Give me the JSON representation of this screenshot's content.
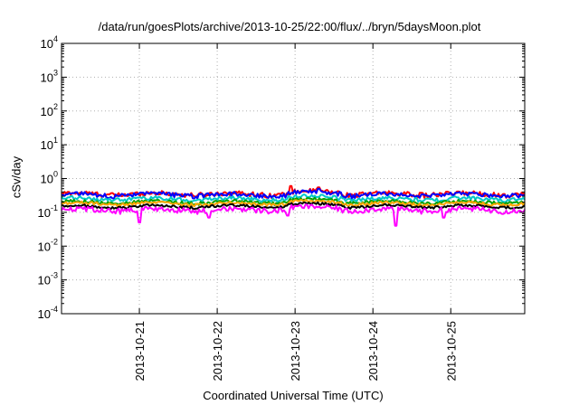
{
  "chart_data": {
    "type": "line",
    "title": "/data/run/goesPlots/archive/2013-10-25/22:00/flux/../bryn/5daysMoon.plot",
    "xlabel": "Coordinated Universal Time (UTC)",
    "ylabel": "cSv/day",
    "yscale": "log",
    "ylim_exponents": [
      -4,
      4
    ],
    "y_ticks": [
      {
        "base": "10",
        "exp": "4"
      },
      {
        "base": "10",
        "exp": "3"
      },
      {
        "base": "10",
        "exp": "2"
      },
      {
        "base": "10",
        "exp": "1"
      },
      {
        "base": "10",
        "exp": "0"
      },
      {
        "base": "10",
        "exp": "-1"
      },
      {
        "base": "10",
        "exp": "-2"
      },
      {
        "base": "10",
        "exp": "-3"
      },
      {
        "base": "10",
        "exp": "-4"
      }
    ],
    "x_start_day": 20.0,
    "x_end_day": 25.95,
    "x_ticks": [
      {
        "label": "2013-10-21",
        "day": 21
      },
      {
        "label": "2013-10-22",
        "day": 22
      },
      {
        "label": "2013-10-23",
        "day": 23
      },
      {
        "label": "2013-10-24",
        "day": 24
      },
      {
        "label": "2013-10-25",
        "day": 25
      }
    ],
    "grid": true,
    "series": [
      {
        "color": "#ff0000",
        "base": 0.35,
        "amp": 0.16,
        "spikes": [
          [
            22.95,
            0.6
          ],
          [
            23.3,
            0.55
          ]
        ]
      },
      {
        "color": "#0000ff",
        "base": 0.33,
        "amp": 0.15,
        "spikes": [
          [
            23.3,
            0.5
          ]
        ]
      },
      {
        "color": "#00c8c8",
        "base": 0.25,
        "amp": 0.13,
        "spikes": []
      },
      {
        "color": "#00a000",
        "base": 0.2,
        "amp": 0.11,
        "spikes": []
      },
      {
        "color": "#ffa500",
        "base": 0.18,
        "amp": 0.1,
        "spikes": []
      },
      {
        "color": "#000000",
        "base": 0.15,
        "amp": 0.09,
        "spikes": []
      },
      {
        "color": "#ff00ff",
        "base": 0.12,
        "amp": 0.18,
        "spikes": [
          [
            21.0,
            0.05
          ],
          [
            21.9,
            0.07
          ],
          [
            22.9,
            0.08
          ],
          [
            24.3,
            0.04
          ],
          [
            24.9,
            0.07
          ]
        ]
      }
    ]
  }
}
